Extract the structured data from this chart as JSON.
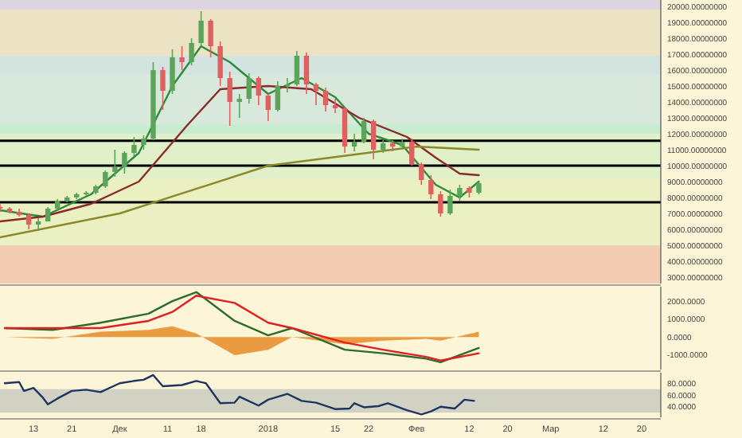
{
  "chart_data": [
    {
      "type": "candlestick",
      "xlim": [
        "2017-11-06",
        "2018-03-24"
      ],
      "ylim": [
        2600,
        20400
      ],
      "tick_labels": "y",
      "yticks": [
        {
          "value": 3000,
          "label": "3000.00000000"
        },
        {
          "value": 4000,
          "label": "4000.00000000"
        },
        {
          "value": 5000,
          "label": "5000.00000000"
        },
        {
          "value": 6000,
          "label": "6000.00000000"
        },
        {
          "value": 7000,
          "label": "7000.00000000"
        },
        {
          "value": 8000,
          "label": "8000.00000000"
        },
        {
          "value": 9000,
          "label": "9000.00000000"
        },
        {
          "value": 10000,
          "label": "10000.00000000"
        },
        {
          "value": 11000,
          "label": "11000.00000000"
        },
        {
          "value": 12000,
          "label": "12000.00000000"
        },
        {
          "value": 13000,
          "label": "13000.00000000"
        },
        {
          "value": 14000,
          "label": "14000.00000000"
        },
        {
          "value": 15000,
          "label": "15000.00000000"
        },
        {
          "value": 16000,
          "label": "16000.00000000"
        },
        {
          "value": 17000,
          "label": "17000.00000000"
        },
        {
          "value": 18000,
          "label": "18000.00000000"
        },
        {
          "value": 19000,
          "label": "19000.00000000"
        },
        {
          "value": 20000,
          "label": "20000.00000000"
        }
      ],
      "x": [
        "2017-11-06",
        "2017-11-08",
        "2017-11-10",
        "2017-11-12",
        "2017-11-14",
        "2017-11-16",
        "2017-11-18",
        "2017-11-20",
        "2017-11-22",
        "2017-11-24",
        "2017-11-26",
        "2017-11-28",
        "2017-11-30",
        "2017-12-02",
        "2017-12-04",
        "2017-12-06",
        "2017-12-08",
        "2017-12-10",
        "2017-12-12",
        "2017-12-14",
        "2017-12-16",
        "2017-12-18",
        "2017-12-20",
        "2017-12-22",
        "2017-12-24",
        "2017-12-26",
        "2017-12-28",
        "2017-12-30",
        "2018-01-01",
        "2018-01-03",
        "2018-01-05",
        "2018-01-07",
        "2018-01-09",
        "2018-01-11",
        "2018-01-13",
        "2018-01-15",
        "2018-01-17",
        "2018-01-19",
        "2018-01-21",
        "2018-01-23",
        "2018-01-25",
        "2018-01-27",
        "2018-01-29",
        "2018-01-31",
        "2018-02-02",
        "2018-02-04",
        "2018-02-06",
        "2018-02-08",
        "2018-02-10",
        "2018-02-12",
        "2018-02-14"
      ],
      "ohlc": [
        [
          7400,
          7600,
          7100,
          7300
        ],
        [
          7300,
          7400,
          7000,
          7100
        ],
        [
          7100,
          7300,
          6800,
          6900
        ],
        [
          6900,
          7000,
          6000,
          6300
        ],
        [
          6300,
          6700,
          5900,
          6500
        ],
        [
          6500,
          7400,
          6500,
          7300
        ],
        [
          7300,
          7900,
          7200,
          7800
        ],
        [
          7800,
          8100,
          7700,
          8000
        ],
        [
          8000,
          8300,
          7900,
          8200
        ],
        [
          8200,
          8400,
          8100,
          8300
        ],
        [
          8300,
          8800,
          8200,
          8700
        ],
        [
          8700,
          9700,
          8600,
          9600
        ],
        [
          9600,
          11000,
          9300,
          9900
        ],
        [
          9900,
          10900,
          9500,
          10800
        ],
        [
          10800,
          11800,
          10600,
          11300
        ],
        [
          11300,
          11900,
          11000,
          11700
        ],
        [
          11700,
          16500,
          11600,
          16000
        ],
        [
          16000,
          16200,
          13500,
          14700
        ],
        [
          14700,
          17300,
          14500,
          16800
        ],
        [
          16800,
          17500,
          16000,
          16500
        ],
        [
          16500,
          18000,
          16300,
          17700
        ],
        [
          17700,
          19700,
          17500,
          19100
        ],
        [
          19100,
          19200,
          16800,
          17500
        ],
        [
          17500,
          17800,
          15000,
          15500
        ],
        [
          15500,
          15900,
          12500,
          14000
        ],
        [
          14000,
          14500,
          13000,
          14200
        ],
        [
          14200,
          15800,
          13900,
          15500
        ],
        [
          15500,
          15600,
          13800,
          14400
        ],
        [
          14400,
          14500,
          12800,
          13500
        ],
        [
          13500,
          15300,
          13400,
          15000
        ],
        [
          15000,
          15500,
          14600,
          15100
        ],
        [
          15100,
          17200,
          15000,
          16900
        ],
        [
          16900,
          17100,
          14500,
          15100
        ],
        [
          15100,
          15200,
          13800,
          14700
        ],
        [
          14700,
          14900,
          13400,
          13800
        ],
        [
          13800,
          14200,
          13300,
          13600
        ],
        [
          13600,
          13700,
          10800,
          11200
        ],
        [
          11200,
          12000,
          10900,
          11500
        ],
        [
          11500,
          13000,
          11400,
          12800
        ],
        [
          12800,
          12900,
          10400,
          11000
        ],
        [
          11000,
          11600,
          10800,
          11400
        ],
        [
          11400,
          11600,
          10900,
          11200
        ],
        [
          11200,
          11700,
          11000,
          11500
        ],
        [
          11500,
          11700,
          10000,
          10100
        ],
        [
          10100,
          10200,
          8800,
          9100
        ],
        [
          9100,
          9400,
          7900,
          8200
        ],
        [
          8200,
          8400,
          6800,
          7000
        ],
        [
          7000,
          8500,
          6900,
          8100
        ],
        [
          8100,
          8800,
          7800,
          8600
        ],
        [
          8600,
          8700,
          8000,
          8300
        ],
        [
          8300,
          9000,
          8200,
          8900
        ]
      ],
      "series": [
        {
          "type": "line",
          "color": "#2e8b3a",
          "x": [
            "2017-11-06",
            "2017-11-15",
            "2017-11-25",
            "2017-12-05",
            "2017-12-12",
            "2017-12-18",
            "2017-12-24",
            "2018-01-01",
            "2018-01-08",
            "2018-01-15",
            "2018-01-22",
            "2018-01-29",
            "2018-02-05",
            "2018-02-10",
            "2018-02-14"
          ],
          "values": [
            7200,
            6800,
            8200,
            10800,
            15000,
            17500,
            16500,
            14500,
            15500,
            14300,
            12000,
            11300,
            8800,
            8000,
            9000
          ]
        },
        {
          "type": "line",
          "color": "#8b2a2a",
          "x": [
            "2017-11-06",
            "2017-11-15",
            "2017-11-25",
            "2017-12-05",
            "2017-12-15",
            "2017-12-22",
            "2018-01-01",
            "2018-01-10",
            "2018-01-20",
            "2018-01-30",
            "2018-02-05",
            "2018-02-10",
            "2018-02-14"
          ],
          "values": [
            6500,
            6800,
            7600,
            9000,
            12500,
            14800,
            15000,
            14800,
            13000,
            11800,
            10500,
            9500,
            9400
          ]
        },
        {
          "type": "line",
          "color": "#8a8a2a",
          "x": [
            "2017-11-06",
            "2017-12-01",
            "2018-01-01",
            "2018-02-01",
            "2018-02-14"
          ],
          "values": [
            5500,
            7000,
            10000,
            11200,
            11000
          ]
        }
      ],
      "bands": [
        {
          "axis": "y",
          "from": 19800,
          "to": 20400,
          "color": "#ddd5e2"
        },
        {
          "axis": "y",
          "from": 16900,
          "to": 19800,
          "color": "#ece2c4"
        },
        {
          "axis": "y",
          "from": 15700,
          "to": 16900,
          "color": "#d3e3df"
        },
        {
          "axis": "y",
          "from": 12600,
          "to": 15700,
          "color": "#d8e9dc"
        },
        {
          "axis": "y",
          "from": 12000,
          "to": 12600,
          "color": "#c8ecd0"
        },
        {
          "axis": "y",
          "from": 9200,
          "to": 12000,
          "color": "#e0f0c8"
        },
        {
          "axis": "y",
          "from": 5000,
          "to": 9200,
          "color": "#eaf0c2"
        },
        {
          "axis": "y",
          "from": 2600,
          "to": 5000,
          "color": "#f2cdb4"
        }
      ],
      "ref_lines": [
        {
          "axis": "y",
          "value": 11563,
          "color": "#000000"
        },
        {
          "axis": "y",
          "value": 10001,
          "color": "#000000"
        },
        {
          "axis": "y",
          "value": 7700,
          "color": "#000000"
        }
      ]
    },
    {
      "type": "line",
      "xlim": [
        "2017-11-06",
        "2018-03-24"
      ],
      "ylim": [
        -1800,
        2800
      ],
      "tick_labels": "y",
      "yticks": [
        {
          "value": -1000,
          "label": "-1000.0000"
        },
        {
          "value": 0,
          "label": "0.0000"
        },
        {
          "value": 1000,
          "label": "1000.0000"
        },
        {
          "value": 2000,
          "label": "2000.0000"
        }
      ],
      "series": [
        {
          "type": "area",
          "color": "#e89030",
          "x": [
            "2017-11-07",
            "2017-11-17",
            "2017-11-27",
            "2017-12-07",
            "2017-12-12",
            "2017-12-17",
            "2017-12-25",
            "2018-01-01",
            "2018-01-06",
            "2018-01-17",
            "2018-01-25",
            "2018-02-03",
            "2018-02-06",
            "2018-02-14"
          ],
          "values": [
            0,
            -100,
            300,
            400,
            600,
            200,
            -1000,
            -700,
            0,
            -400,
            -200,
            -100,
            -200,
            300
          ]
        },
        {
          "type": "line",
          "color": "#2e6b2a",
          "x": [
            "2017-11-07",
            "2017-11-17",
            "2017-11-27",
            "2017-12-07",
            "2017-12-12",
            "2017-12-17",
            "2017-12-25",
            "2018-01-01",
            "2018-01-06",
            "2018-01-17",
            "2018-01-25",
            "2018-02-03",
            "2018-02-06",
            "2018-02-14"
          ],
          "values": [
            500,
            400,
            800,
            1300,
            2000,
            2500,
            900,
            100,
            500,
            -700,
            -900,
            -1200,
            -1400,
            -600
          ]
        },
        {
          "type": "line",
          "color": "#e02020",
          "x": [
            "2017-11-07",
            "2017-11-17",
            "2017-11-27",
            "2017-12-07",
            "2017-12-12",
            "2017-12-17",
            "2017-12-25",
            "2018-01-01",
            "2018-01-06",
            "2018-01-17",
            "2018-01-25",
            "2018-02-03",
            "2018-02-06",
            "2018-02-14"
          ],
          "values": [
            500,
            500,
            500,
            900,
            1400,
            2300,
            1900,
            800,
            500,
            -300,
            -700,
            -1100,
            -1300,
            -900
          ]
        }
      ]
    },
    {
      "type": "line",
      "xlim": [
        "2017-11-06",
        "2018-03-24"
      ],
      "ylim": [
        22,
        98
      ],
      "yticks": [
        {
          "value": 40,
          "label": "40.0000"
        },
        {
          "value": 60,
          "label": "60.0000"
        },
        {
          "value": 80,
          "label": "80.0000"
        }
      ],
      "xticks": [
        {
          "value": "2017-11-13",
          "label": "13"
        },
        {
          "value": "2017-11-21",
          "label": "21"
        },
        {
          "value": "2017-12-01",
          "label": "Дек"
        },
        {
          "value": "2017-12-11",
          "label": "11"
        },
        {
          "value": "2017-12-18",
          "label": "18"
        },
        {
          "value": "2018-01-01",
          "label": "2018"
        },
        {
          "value": "2018-01-15",
          "label": "15"
        },
        {
          "value": "2018-01-22",
          "label": "22"
        },
        {
          "value": "2018-02-01",
          "label": "Фев"
        },
        {
          "value": "2018-02-12",
          "label": "12"
        },
        {
          "value": "2018-02-20",
          "label": "20"
        },
        {
          "value": "2018-03-01",
          "label": "Мар"
        },
        {
          "value": "2018-03-12",
          "label": "12"
        },
        {
          "value": "2018-03-20",
          "label": "20"
        }
      ],
      "bands": [
        {
          "axis": "y",
          "from": 30,
          "to": 70,
          "color": "#d2d2c4"
        }
      ],
      "series": [
        {
          "type": "line",
          "color": "#1f3560",
          "x": [
            "2017-11-07",
            "2017-11-10",
            "2017-11-11",
            "2017-11-13",
            "2017-11-15",
            "2017-11-16",
            "2017-11-18",
            "2017-11-21",
            "2017-11-24",
            "2017-11-27",
            "2017-12-01",
            "2017-12-04",
            "2017-12-06",
            "2017-12-08",
            "2017-12-10",
            "2017-12-14",
            "2017-12-17",
            "2017-12-19",
            "2017-12-22",
            "2017-12-25",
            "2017-12-26",
            "2017-12-30",
            "2018-01-01",
            "2018-01-05",
            "2018-01-08",
            "2018-01-11",
            "2018-01-15",
            "2018-01-18",
            "2018-01-19",
            "2018-01-21",
            "2018-01-24",
            "2018-01-26",
            "2018-01-30",
            "2018-02-02",
            "2018-02-04",
            "2018-02-06",
            "2018-02-09",
            "2018-02-11",
            "2018-02-13"
          ],
          "values": [
            80,
            82,
            67,
            72,
            55,
            44,
            54,
            67,
            69,
            65,
            80,
            84,
            86,
            94,
            75,
            77,
            84,
            80,
            46,
            47,
            57,
            42,
            52,
            62,
            50,
            47,
            36,
            37,
            46,
            39,
            41,
            46,
            34,
            27,
            32,
            40,
            37,
            52,
            50
          ]
        }
      ]
    }
  ]
}
